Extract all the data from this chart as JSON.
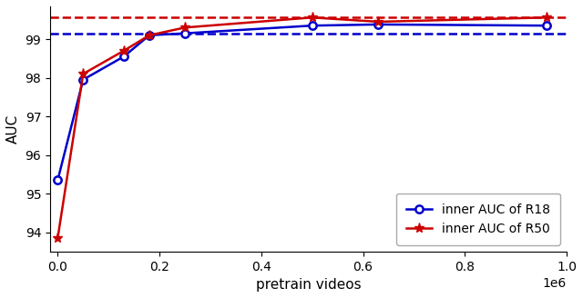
{
  "r18_x": [
    0,
    50000,
    130000,
    180000,
    250000,
    500000,
    630000,
    960000
  ],
  "r18_y": [
    95.35,
    97.95,
    98.55,
    99.1,
    99.15,
    99.35,
    99.38,
    99.35
  ],
  "r50_x": [
    0,
    50000,
    130000,
    180000,
    250000,
    500000,
    630000,
    960000
  ],
  "r50_y": [
    93.85,
    98.1,
    98.7,
    99.1,
    99.3,
    99.56,
    99.45,
    99.56
  ],
  "r18_hline": 99.15,
  "r50_hline": 99.56,
  "r18_color": "#0000cc",
  "r50_color": "#cc0000",
  "xlabel": "pretrain videos",
  "ylabel": "AUC",
  "legend_r18": "inner AUC of R18",
  "legend_r50": "inner AUC of R50",
  "ylim": [
    93.5,
    99.85
  ],
  "xlim": [
    -15000,
    1000000
  ],
  "figsize": [
    6.4,
    3.28
  ],
  "dpi": 100
}
